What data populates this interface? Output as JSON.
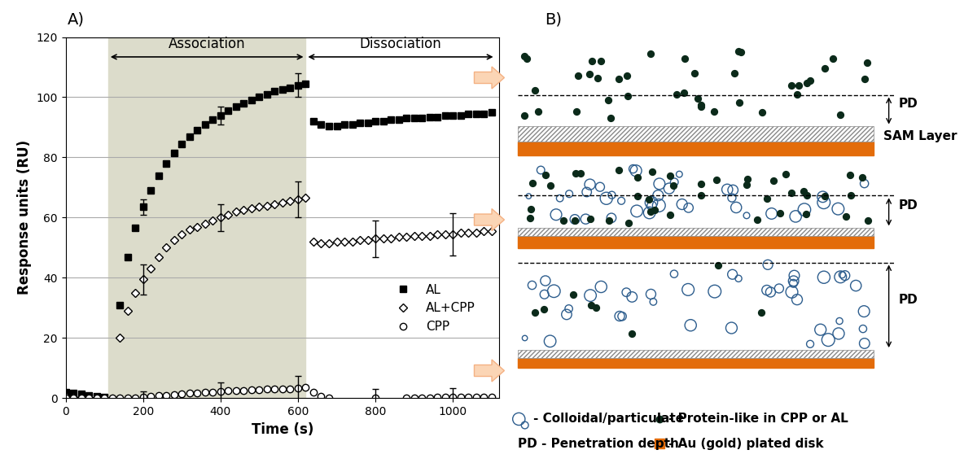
{
  "panel_labels": [
    "A)",
    "B)"
  ],
  "chart_data": {
    "type": "scatter",
    "x_label": "Time (s)",
    "y_label": "Response units (RU)",
    "xlim": [
      0,
      1120
    ],
    "ylim": [
      0,
      120
    ],
    "xticks": [
      0,
      200,
      400,
      600,
      800,
      1000
    ],
    "yticks": [
      0,
      20,
      40,
      60,
      80,
      100,
      120
    ],
    "grid": true,
    "legend": "lower right",
    "regions": [
      {
        "label": "Association",
        "range": [
          110,
          620
        ]
      },
      {
        "label": "Dissociation",
        "range": [
          620,
          1110
        ]
      }
    ],
    "x": [
      0,
      20,
      40,
      60,
      80,
      100,
      120,
      140,
      160,
      180,
      200,
      220,
      240,
      260,
      280,
      300,
      320,
      340,
      360,
      380,
      400,
      420,
      440,
      460,
      480,
      500,
      520,
      540,
      560,
      580,
      600,
      620,
      640,
      660,
      680,
      700,
      720,
      740,
      760,
      780,
      800,
      820,
      840,
      860,
      880,
      900,
      920,
      940,
      960,
      980,
      1000,
      1020,
      1040,
      1060,
      1080,
      1100
    ],
    "series": [
      {
        "name": "AL",
        "color": "#000000",
        "marker": "square",
        "values": [
          2,
          1.8,
          1.5,
          1,
          0.7,
          0.4,
          null,
          31,
          47,
          56.5,
          63.5,
          69,
          74,
          78,
          81.5,
          84.5,
          87,
          89,
          91,
          92.5,
          94,
          95.5,
          97,
          98,
          99,
          100,
          101,
          102,
          102.5,
          103,
          104,
          104.5,
          92,
          91,
          90.5,
          90.5,
          91,
          91,
          91.5,
          91.5,
          92,
          92,
          92.5,
          92.5,
          93,
          93,
          93,
          93.5,
          93.5,
          94,
          94,
          94,
          94.5,
          94.5,
          94.5,
          95
        ],
        "errors": [
          {
            "x": 200,
            "error": 2.5
          },
          {
            "x": 400,
            "error": 3
          },
          {
            "x": 600,
            "error": 4
          }
        ]
      },
      {
        "name": "AL+CPP",
        "color": "#000000",
        "marker": "diamond_open",
        "values": [
          0.5,
          0.3,
          0.2,
          0,
          0,
          0,
          null,
          20,
          29,
          35,
          39.5,
          43,
          47,
          50,
          52.5,
          54.5,
          56,
          57,
          58,
          59,
          60,
          61,
          62,
          62.5,
          63,
          63.5,
          64,
          64.5,
          65,
          65.5,
          66,
          66.5,
          52,
          51.5,
          51.5,
          52,
          52,
          52,
          52.5,
          52.5,
          53,
          53,
          53,
          53.5,
          53.5,
          54,
          54,
          54,
          54.5,
          54.5,
          54.5,
          55,
          55,
          55,
          55.5,
          55.5
        ],
        "errors": [
          {
            "x": 200,
            "error": 5
          },
          {
            "x": 400,
            "error": 4.5
          },
          {
            "x": 600,
            "error": 6
          },
          {
            "x": 800,
            "error": 6
          },
          {
            "x": 1000,
            "error": 7
          }
        ]
      },
      {
        "name": "CPP",
        "color": "#000000",
        "marker": "circle_open",
        "values": [
          0,
          0,
          0,
          0,
          0,
          0,
          0,
          0,
          0,
          0,
          0.3,
          0.5,
          0.8,
          1,
          1.2,
          1.4,
          1.6,
          1.8,
          2,
          2,
          2.2,
          2.4,
          2.5,
          2.6,
          2.7,
          2.8,
          3,
          3,
          3.1,
          3.2,
          3.3,
          3.5,
          2,
          0.5,
          0,
          null,
          null,
          null,
          null,
          null,
          0,
          null,
          null,
          null,
          0,
          0.2,
          0.2,
          0.2,
          0.3,
          0.3,
          0.3,
          0.3,
          0.3,
          0.3,
          0.3,
          0.3
        ],
        "errors": [
          {
            "x": 200,
            "error": 2
          },
          {
            "x": 400,
            "error": 3
          },
          {
            "x": 600,
            "error": 4
          },
          {
            "x": 800,
            "error": 3
          },
          {
            "x": 1000,
            "error": 3
          }
        ]
      }
    ]
  },
  "diagram": {
    "panels": [
      {
        "pd_label": "PD",
        "layer_label": "SAM Layer"
      },
      {
        "pd_label": "PD"
      },
      {
        "pd_label": "PD"
      }
    ],
    "legend": {
      "colloid": "- Colloidal/particulate",
      "protein": "- Protein-like in CPP or AL",
      "pd": "PD - Penetration depth",
      "disk": "- Au (gold) plated disk"
    }
  }
}
